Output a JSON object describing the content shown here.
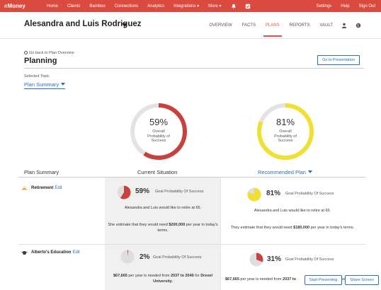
{
  "topnav": {
    "logo_e": "e",
    "logo_money": "Money",
    "items": [
      "Home",
      "Clients",
      "Bamboo",
      "Connections",
      "Analytics",
      "Integrations ▾",
      "More ▾"
    ],
    "right_items": [
      "Settings",
      "Help",
      "Sign Out"
    ],
    "icons": [
      "bell-icon",
      "checkbox-icon"
    ],
    "color": "#db4a3e"
  },
  "client": {
    "name": "Alesandra and Luis Rodriguez",
    "tabs": [
      "OVERVIEW",
      "FACTS",
      "PLANS",
      "REPORTS",
      "VAULT"
    ],
    "active_tab": "PLANS",
    "icons": [
      "person-icon",
      "globe-icon"
    ]
  },
  "planning": {
    "back_link": "Go back to Plan Overview",
    "title": "Planning",
    "present_button": "Go to Presentation",
    "selected_topic_label": "Selected Topic",
    "selected_topic": "Plan Summary"
  },
  "gauges": {
    "current": {
      "pct": "59%",
      "value": 0.59,
      "label": "Overall Probability of Success",
      "color": "#c9403c"
    },
    "recommended": {
      "pct": "81%",
      "value": 0.81,
      "label": "Overall Probability of Success",
      "color": "#f0e130"
    }
  },
  "table": {
    "col_summary": "Plan Summary",
    "col_current": "Current Situation",
    "col_recommended": "Recommended Plan",
    "goal_prob_label": "Goal Probability Of Success",
    "rows": [
      {
        "name": "Retirement",
        "edit": "Edit",
        "icon": "sun-icon",
        "current": {
          "pct": "59%",
          "value": 0.59,
          "color": "#c9403c",
          "line1": "Alesandra and Luis would like to retire at 65.",
          "line2_prefix": "She estimate that they would need ",
          "line2_amount": "$200,000",
          "line2_suffix": " per year in today's terms."
        },
        "recommended": {
          "pct": "81%",
          "value": 0.81,
          "color": "#f0e130",
          "line1": "Alesandra and Luis would like to retire at 65.",
          "line2_prefix": "They estimate that they would need ",
          "line2_amount": "$180,000",
          "line2_suffix": " per year in today's terms."
        }
      },
      {
        "name": "Alberto's Education",
        "edit": "Edit",
        "icon": "graduation-cap-icon",
        "current": {
          "pct": "2%",
          "value": 0.02,
          "color": "#c9403c",
          "line1_bold": "$67,665",
          "line1_rest": " per year is needed from ",
          "line1_years": "2037 to 2040",
          "line1_for": " for ",
          "line1_school": "Drexel University."
        },
        "recommended": {
          "pct": "31%",
          "value": 0.31,
          "color": "#c9403c",
          "line1_bold": "$67,665",
          "line1_rest": " per year is needed from ",
          "line1_years": "2037 to",
          "line1_tail": "xe"
        }
      }
    ]
  },
  "float_buttons": {
    "start": "Start Presenting",
    "share": "Share Screen"
  }
}
